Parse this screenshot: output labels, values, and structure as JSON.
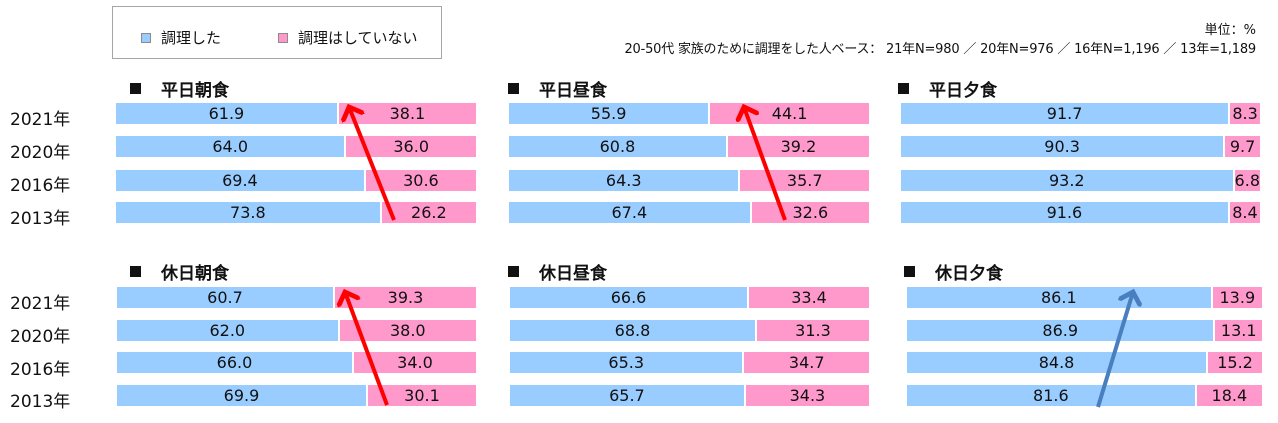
{
  "legend": {
    "items": [
      {
        "label": "調理した",
        "color": "#99ccff"
      },
      {
        "label": "調理はしていない",
        "color": "#ff99cc"
      }
    ]
  },
  "unit_label": "単位：%",
  "base_note": "20-50代 家族のために調理をした人ベース： 21年N=980 ／ 20年N=976 ／ 16年N=1,196 ／ 13年=1,189",
  "year_labels": [
    "2021年",
    "2020年",
    "2016年",
    "2013年"
  ],
  "colors": {
    "cooked": "#99ccff",
    "not_cooked": "#ff99cc",
    "arrow_red": "#ff0000",
    "arrow_blue": "#4a7fbf"
  },
  "chart_data": [
    {
      "type": "bar",
      "stacked": true,
      "orientation": "horizontal",
      "title": "平日朝食",
      "categories": [
        "2021年",
        "2020年",
        "2016年",
        "2013年"
      ],
      "series": [
        {
          "name": "調理した",
          "values": [
            61.9,
            64.0,
            69.4,
            73.8
          ]
        },
        {
          "name": "調理はしていない",
          "values": [
            38.1,
            36.0,
            30.6,
            26.2
          ]
        }
      ],
      "annotation": "red arrow indicating increase in 調理はしていない from 2013 to 2021"
    },
    {
      "type": "bar",
      "stacked": true,
      "orientation": "horizontal",
      "title": "平日昼食",
      "categories": [
        "2021年",
        "2020年",
        "2016年",
        "2013年"
      ],
      "series": [
        {
          "name": "調理した",
          "values": [
            55.9,
            60.8,
            64.3,
            67.4
          ]
        },
        {
          "name": "調理はしていない",
          "values": [
            44.1,
            39.2,
            35.7,
            32.6
          ]
        }
      ],
      "annotation": "red arrow indicating increase in 調理はしていない from 2013 to 2021"
    },
    {
      "type": "bar",
      "stacked": true,
      "orientation": "horizontal",
      "title": "平日夕食",
      "categories": [
        "2021年",
        "2020年",
        "2016年",
        "2013年"
      ],
      "series": [
        {
          "name": "調理した",
          "values": [
            91.7,
            90.3,
            93.2,
            91.6
          ]
        },
        {
          "name": "調理はしていない",
          "values": [
            8.3,
            9.7,
            6.8,
            8.4
          ]
        }
      ]
    },
    {
      "type": "bar",
      "stacked": true,
      "orientation": "horizontal",
      "title": "休日朝食",
      "categories": [
        "2021年",
        "2020年",
        "2016年",
        "2013年"
      ],
      "series": [
        {
          "name": "調理した",
          "values": [
            60.7,
            62.0,
            66.0,
            69.9
          ]
        },
        {
          "name": "調理はしていない",
          "values": [
            39.3,
            38.0,
            34.0,
            30.1
          ]
        }
      ],
      "annotation": "red arrow indicating increase in 調理はしていない from 2013 to 2021"
    },
    {
      "type": "bar",
      "stacked": true,
      "orientation": "horizontal",
      "title": "休日昼食",
      "categories": [
        "2021年",
        "2020年",
        "2016年",
        "2013年"
      ],
      "series": [
        {
          "name": "調理した",
          "values": [
            66.6,
            68.8,
            65.3,
            65.7
          ]
        },
        {
          "name": "調理はしていない",
          "values": [
            33.4,
            31.3,
            34.7,
            34.3
          ]
        }
      ]
    },
    {
      "type": "bar",
      "stacked": true,
      "orientation": "horizontal",
      "title": "休日夕食",
      "categories": [
        "2021年",
        "2020年",
        "2016年",
        "2013年"
      ],
      "series": [
        {
          "name": "調理した",
          "values": [
            86.1,
            86.9,
            84.8,
            81.6
          ]
        },
        {
          "name": "調理はしていない",
          "values": [
            13.9,
            13.1,
            15.2,
            18.4
          ]
        }
      ],
      "annotation": "blue arrow indicating increase in 調理した from 2013 to 2021"
    }
  ]
}
